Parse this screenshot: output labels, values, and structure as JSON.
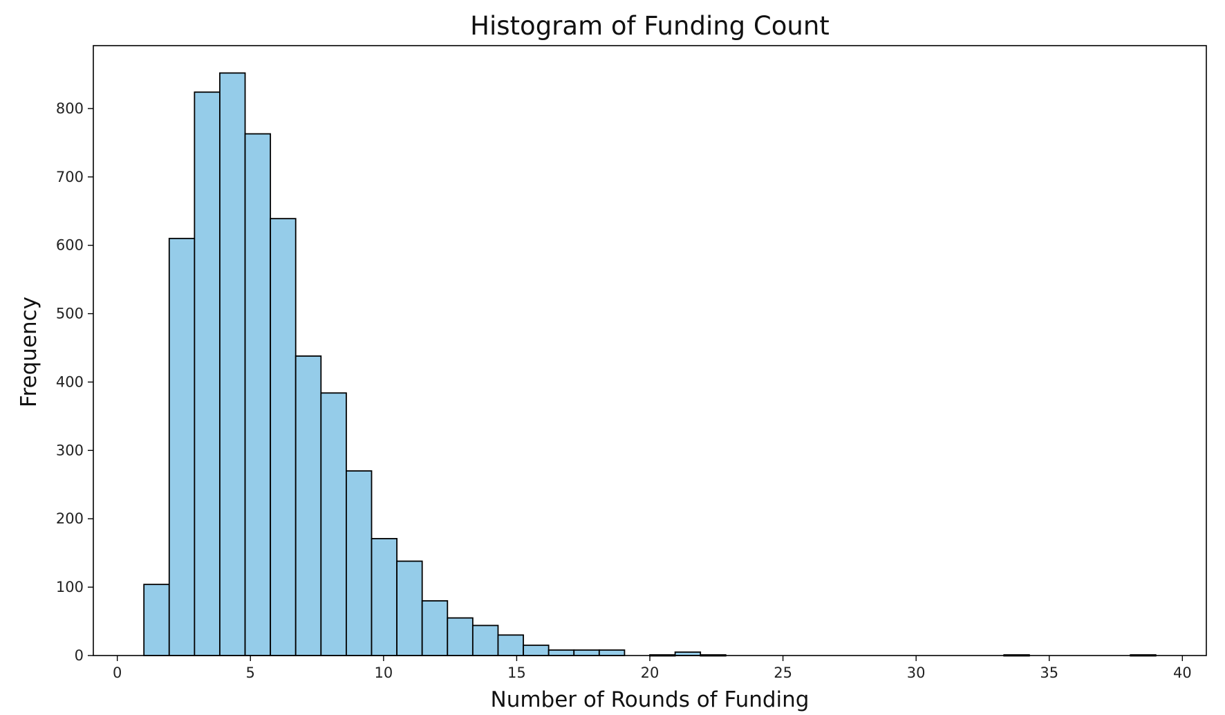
{
  "chart_data": {
    "type": "bar",
    "title": "Histogram of Funding Count",
    "xlabel": "Number of Rounds of Funding",
    "ylabel": "Frequency",
    "xlim": [
      -0.9,
      40.9
    ],
    "ylim": [
      0,
      892
    ],
    "xticks": [
      0,
      5,
      10,
      15,
      20,
      25,
      30,
      35,
      40
    ],
    "yticks": [
      0,
      100,
      200,
      300,
      400,
      500,
      600,
      700,
      800
    ],
    "bin_start": 1,
    "bin_width": 0.95,
    "values": [
      104,
      610,
      824,
      852,
      763,
      639,
      438,
      384,
      270,
      171,
      138,
      80,
      55,
      44,
      30,
      15,
      8,
      8,
      8,
      0,
      1,
      5,
      1,
      0,
      0,
      0,
      0,
      0,
      0,
      0,
      0,
      0,
      0,
      0,
      1,
      0,
      0,
      0,
      0,
      1
    ],
    "bar_color": "#95CCE9",
    "edge_color": "#000000",
    "grid": false
  }
}
